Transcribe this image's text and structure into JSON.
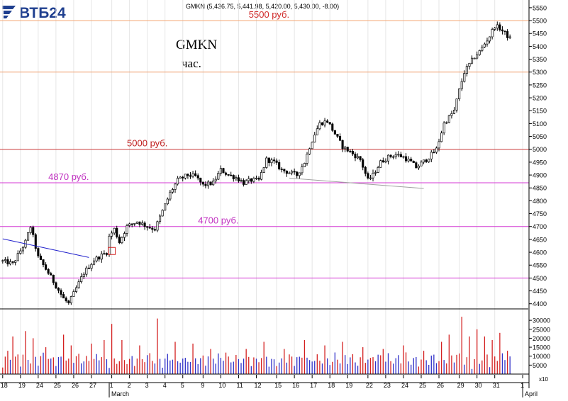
{
  "brand": {
    "logo_text": "ВТБ24",
    "logo_color": "#1f3f8f"
  },
  "header": {
    "quote": "GMKN (5,436.75, 5,441.98, 5,420.00, 5,430.00, -8.00)"
  },
  "chart_data": [
    {
      "type": "candlestick",
      "title": "GMKN",
      "subtitle": "час.",
      "ylim": [
        4380,
        5580
      ],
      "y_ticks": [
        4400,
        4450,
        4500,
        4550,
        4600,
        4650,
        4700,
        4750,
        4800,
        4850,
        4900,
        4950,
        5000,
        5050,
        5100,
        5150,
        5200,
        5250,
        5300,
        5350,
        5400,
        5450,
        5500,
        5550
      ],
      "x_ticks": [
        {
          "label": "18",
          "idx": 0
        },
        {
          "label": "19",
          "idx": 7
        },
        {
          "label": "24",
          "idx": 14
        },
        {
          "label": "25",
          "idx": 21
        },
        {
          "label": "26",
          "idx": 28
        },
        {
          "label": "27",
          "idx": 35
        },
        {
          "label": "1",
          "idx": 43
        },
        {
          "label": "2",
          "idx": 50
        },
        {
          "label": "3",
          "idx": 57
        },
        {
          "label": "4",
          "idx": 64
        },
        {
          "label": "5",
          "idx": 71
        },
        {
          "label": "9",
          "idx": 79
        },
        {
          "label": "10",
          "idx": 86
        },
        {
          "label": "11",
          "idx": 93
        },
        {
          "label": "12",
          "idx": 100
        },
        {
          "label": "15",
          "idx": 108
        },
        {
          "label": "16",
          "idx": 115
        },
        {
          "label": "17",
          "idx": 122
        },
        {
          "label": "18",
          "idx": 129
        },
        {
          "label": "19",
          "idx": 136
        },
        {
          "label": "22",
          "idx": 144
        },
        {
          "label": "23",
          "idx": 151
        },
        {
          "label": "24",
          "idx": 158
        },
        {
          "label": "25",
          "idx": 165
        },
        {
          "label": "26",
          "idx": 172
        },
        {
          "label": "29",
          "idx": 180
        },
        {
          "label": "30",
          "idx": 187
        },
        {
          "label": "31",
          "idx": 194
        },
        {
          "label": "1",
          "idx": 205
        }
      ],
      "month_labels": [
        {
          "label": "March",
          "idx": 42
        },
        {
          "label": "April",
          "idx": 205
        }
      ],
      "n_slots": 208,
      "last_index": 200,
      "anchors": [
        [
          0,
          4565
        ],
        [
          4,
          4555
        ],
        [
          9,
          4640
        ],
        [
          11,
          4700
        ],
        [
          14,
          4580
        ],
        [
          18,
          4520
        ],
        [
          21,
          4470
        ],
        [
          24,
          4420
        ],
        [
          26,
          4400
        ],
        [
          29,
          4460
        ],
        [
          32,
          4520
        ],
        [
          36,
          4570
        ],
        [
          41,
          4600
        ],
        [
          42,
          4660
        ],
        [
          44,
          4690
        ],
        [
          46,
          4640
        ],
        [
          49,
          4700
        ],
        [
          53,
          4720
        ],
        [
          57,
          4700
        ],
        [
          60,
          4690
        ],
        [
          63,
          4760
        ],
        [
          66,
          4830
        ],
        [
          69,
          4880
        ],
        [
          73,
          4900
        ],
        [
          76,
          4895
        ],
        [
          79,
          4860
        ],
        [
          83,
          4870
        ],
        [
          86,
          4920
        ],
        [
          89,
          4900
        ],
        [
          92,
          4890
        ],
        [
          95,
          4870
        ],
        [
          98,
          4880
        ],
        [
          101,
          4880
        ],
        [
          104,
          4960
        ],
        [
          107,
          4950
        ],
        [
          110,
          4920
        ],
        [
          113,
          4910
        ],
        [
          116,
          4900
        ],
        [
          119,
          4950
        ],
        [
          121,
          5010
        ],
        [
          123,
          5060
        ],
        [
          125,
          5100
        ],
        [
          128,
          5110
        ],
        [
          131,
          5060
        ],
        [
          134,
          5010
        ],
        [
          137,
          4990
        ],
        [
          141,
          4960
        ],
        [
          144,
          4880
        ],
        [
          146,
          4900
        ],
        [
          149,
          4950
        ],
        [
          152,
          4970
        ],
        [
          155,
          4980
        ],
        [
          158,
          4970
        ],
        [
          161,
          4950
        ],
        [
          163,
          4930
        ],
        [
          167,
          4960
        ],
        [
          171,
          5000
        ],
        [
          174,
          5100
        ],
        [
          178,
          5150
        ],
        [
          180,
          5230
        ],
        [
          182,
          5300
        ],
        [
          184,
          5330
        ],
        [
          186,
          5360
        ],
        [
          188,
          5380
        ],
        [
          190,
          5410
        ],
        [
          192,
          5440
        ],
        [
          194,
          5480
        ],
        [
          196,
          5470
        ],
        [
          198,
          5450
        ],
        [
          200,
          5430
        ]
      ],
      "resistance_lines": [
        {
          "label": "5500 руб.",
          "value": 5500,
          "color": "#f4a470",
          "label_color": "#d02a2a",
          "label_idx": 97
        },
        {
          "label": "",
          "value": 5300,
          "color": "#f0a070",
          "label_color": "#d02a2a",
          "label_idx": 0
        },
        {
          "label": "5000 руб.",
          "value": 5000,
          "color": "#cc3c3c",
          "label_color": "#c02020",
          "label_idx": 49
        },
        {
          "label": "4870 руб.",
          "value": 4870,
          "color": "#d43ad4",
          "label_color": "#c030c0",
          "label_idx": 18
        },
        {
          "label": "4700 руб.",
          "value": 4700,
          "color": "#d43ad4",
          "label_color": "#c030c0",
          "label_idx": 77
        },
        {
          "label": "",
          "value": 4500,
          "color": "#d43ad4",
          "label_color": "#c030c0",
          "label_idx": 0
        }
      ],
      "trend_lines": [
        {
          "x1": 0,
          "y1": 4652,
          "x2": 34,
          "y2": 4580,
          "color": "#2020cc"
        },
        {
          "x1": 113,
          "y1": 4888,
          "x2": 166,
          "y2": 4848,
          "color": "#a0a0a0"
        }
      ],
      "marker": {
        "idx": 43,
        "value": 4605,
        "color": "#d42020"
      },
      "colors": {
        "candle": "#000000",
        "grid": "#e6e6e6",
        "axis": "#000000"
      }
    },
    {
      "type": "bar",
      "title": "",
      "ylim": [
        0,
        34000
      ],
      "y_ticks": [
        5000,
        10000,
        15000,
        20000,
        25000,
        30000
      ],
      "y_tick_labels": [
        "5000",
        "10000",
        "15000",
        "20000",
        "25000",
        "30000"
      ],
      "corner_label": "x10",
      "spikes": [
        {
          "idx": 2,
          "value": 13000
        },
        {
          "idx": 4,
          "value": 21000
        },
        {
          "idx": 9,
          "value": 24000
        },
        {
          "idx": 12,
          "value": 20000
        },
        {
          "idx": 17,
          "value": 15000
        },
        {
          "idx": 24,
          "value": 22000
        },
        {
          "idx": 27,
          "value": 16000
        },
        {
          "idx": 35,
          "value": 17000
        },
        {
          "idx": 40,
          "value": 19000
        },
        {
          "idx": 43,
          "value": 28000
        },
        {
          "idx": 47,
          "value": 19000
        },
        {
          "idx": 54,
          "value": 16000
        },
        {
          "idx": 61,
          "value": 31000
        },
        {
          "idx": 68,
          "value": 18000
        },
        {
          "idx": 75,
          "value": 17000
        },
        {
          "idx": 82,
          "value": 14000
        },
        {
          "idx": 88,
          "value": 12000
        },
        {
          "idx": 96,
          "value": 14000
        },
        {
          "idx": 103,
          "value": 18000
        },
        {
          "idx": 111,
          "value": 14000
        },
        {
          "idx": 119,
          "value": 19000
        },
        {
          "idx": 127,
          "value": 16000
        },
        {
          "idx": 134,
          "value": 18000
        },
        {
          "idx": 142,
          "value": 15000
        },
        {
          "idx": 150,
          "value": 14000
        },
        {
          "idx": 158,
          "value": 16000
        },
        {
          "idx": 166,
          "value": 13000
        },
        {
          "idx": 173,
          "value": 18000
        },
        {
          "idx": 176,
          "value": 22000
        },
        {
          "idx": 181,
          "value": 32000
        },
        {
          "idx": 184,
          "value": 21000
        },
        {
          "idx": 187,
          "value": 25000
        },
        {
          "idx": 190,
          "value": 21000
        },
        {
          "idx": 193,
          "value": 19000
        },
        {
          "idx": 196,
          "value": 23000
        },
        {
          "idx": 199,
          "value": 13000
        }
      ],
      "colors": {
        "bar": "#3030c8",
        "spike": "#d42020"
      }
    }
  ]
}
